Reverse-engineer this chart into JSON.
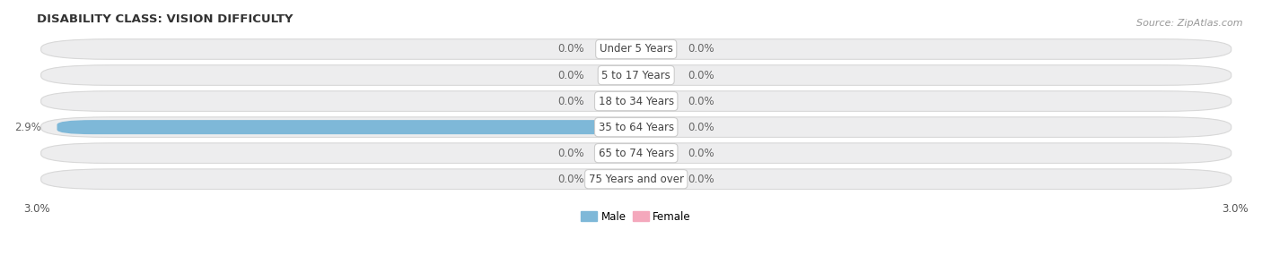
{
  "title": "DISABILITY CLASS: VISION DIFFICULTY",
  "source": "Source: ZipAtlas.com",
  "categories": [
    "Under 5 Years",
    "5 to 17 Years",
    "18 to 34 Years",
    "35 to 64 Years",
    "65 to 74 Years",
    "75 Years and over"
  ],
  "male_values": [
    0.0,
    0.0,
    0.0,
    2.9,
    0.0,
    0.0
  ],
  "female_values": [
    0.0,
    0.0,
    0.0,
    0.0,
    0.0,
    0.0
  ],
  "male_color": "#7eb8d8",
  "female_color": "#f4a8bc",
  "row_bg_color": "#ededee",
  "row_bg_edge": "#d8d8d8",
  "xlim": 3.0,
  "stub_size": 0.18,
  "title_fontsize": 9.5,
  "label_fontsize": 8.5,
  "tick_fontsize": 8.5,
  "source_fontsize": 8,
  "value_color": "#666666",
  "label_color": "#444444"
}
